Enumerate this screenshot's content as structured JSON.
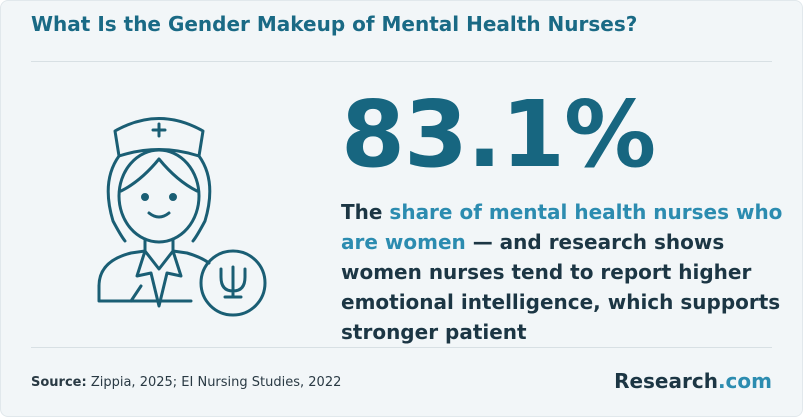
{
  "header": {
    "title": "What Is the Gender Makeup of Mental Health Nurses?"
  },
  "stat": {
    "value": "83.1%",
    "description": {
      "lead": "The",
      "highlight": "share of mental health nurses who are women",
      "rest": "— and research shows women nurses tend to report higher emotional intelligence, which supports stronger patient"
    }
  },
  "footer": {
    "source_label": "Source:",
    "source_text": "Zippia, 2025; EI Nursing Studies, 2022",
    "brand_name": "Research",
    "brand_suffix": ".com"
  }
}
